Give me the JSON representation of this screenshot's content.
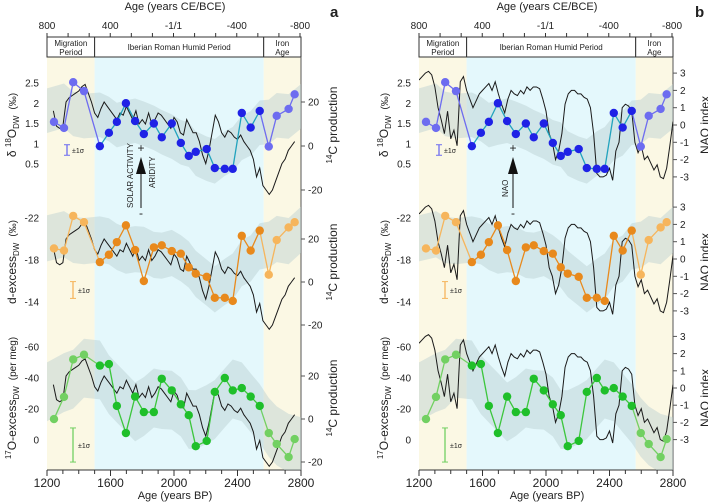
{
  "panels": [
    {
      "letter": "a"
    },
    {
      "letter": "b"
    }
  ],
  "chart_data": {
    "type": "line",
    "top_axis": {
      "label": "Age (years CE/BCE)",
      "ticks": [
        "800",
        "400",
        "-1/1",
        "-400",
        "-800"
      ],
      "values": [
        800,
        400,
        0,
        -400,
        -800
      ]
    },
    "x_axis": {
      "label": "Age (years BP)",
      "ticks": [
        1200,
        1600,
        2000,
        2400,
        2800
      ],
      "xlim": [
        1200,
        2800
      ]
    },
    "periods": [
      {
        "label_lines": [
          "Migration",
          "Period"
        ],
        "from": 1200,
        "to": 1500,
        "color": "#fbf8e4"
      },
      {
        "label_lines": [
          "Iberian Roman Humid Period"
        ],
        "from": 1500,
        "to": 2565,
        "color": "#e4f8fc"
      },
      {
        "label_lines": [
          "Iron",
          "Age"
        ],
        "from": 2565,
        "to": 2800,
        "color": "#fbf8e4"
      }
    ],
    "sample_ages": [
      1244,
      1307,
      1365,
      1433,
      1533,
      1590,
      1640,
      1697,
      1755,
      1810,
      1873,
      1923,
      1986,
      2043,
      2093,
      2137,
      2206,
      2257,
      2320,
      2370,
      2427,
      2483,
      2540,
      2597,
      2647,
      2722,
      2760
    ],
    "series": [
      {
        "name": "d18O_DW",
        "title": {
          "pre": "δ ",
          "sup": "18",
          "main": "O",
          "sub": "DW",
          "unit": "(‰)"
        },
        "ticks": [
          2.5,
          2,
          1.5,
          1,
          0.5
        ],
        "tick_labels": [
          "2.5",
          "2",
          "1.5",
          "1",
          "0.5"
        ],
        "values": [
          1.54,
          1.39,
          2.52,
          2.3,
          0.94,
          1.27,
          1.54,
          2.0,
          1.56,
          1.24,
          1.5,
          1.16,
          1.5,
          1.02,
          0.7,
          0.8,
          0.87,
          0.4,
          0.38,
          0.38,
          1.76,
          1.4,
          1.81,
          0.93,
          1.69,
          1.86,
          2.22
        ],
        "color_dark": "#1f22e6",
        "color_light": "#6d6cf0",
        "line": "#22a3bd",
        "band_halfwidth": 0.55,
        "error_label": "±1σ",
        "error_1sigma": 0.13
      },
      {
        "name": "d-excess_DW",
        "title": {
          "pre": "",
          "sup": "",
          "main": "d-excess",
          "sub": "DW",
          "unit": "(‰)"
        },
        "ticks": [
          -22,
          -18,
          -14
        ],
        "tick_labels": [
          "-22",
          "-18",
          "-14"
        ],
        "values": [
          -19.1,
          -18.9,
          -22.2,
          -21.6,
          -17.8,
          -18.5,
          -19.7,
          -21.3,
          -18.95,
          -16.0,
          -19.2,
          -19.4,
          -18.85,
          -18.6,
          -17.3,
          -16.7,
          -16.4,
          -14.4,
          -14.4,
          -14.1,
          -20.3,
          -18.9,
          -20.8,
          -16.6,
          -19.9,
          -21.1,
          -21.6
        ],
        "color_dark": "#e8891c",
        "color_light": "#f6b55c",
        "line": "#e8891c",
        "band_halfwidth": 2.2,
        "error_label": "±1σ",
        "error_1sigma": 0.8
      },
      {
        "name": "17O-excess_DW",
        "title": {
          "pre": "",
          "sup": "17",
          "main": "O-excess",
          "sub": "DW",
          "unit": "(per meg)"
        },
        "ticks": [
          -60,
          -40,
          -20,
          0
        ],
        "tick_labels": [
          "-60",
          "-40",
          "-20",
          "0"
        ],
        "values": [
          -13.5,
          -27.8,
          -52,
          -55,
          -48,
          -49,
          -22,
          -4.5,
          -28,
          -18,
          -18,
          -39.5,
          -32,
          -23,
          -16,
          4,
          0.6,
          -31,
          -40,
          -32,
          -33.5,
          -28,
          -22,
          -4.5,
          2.6,
          11,
          -0.6
        ],
        "color_dark": "#1fbf2a",
        "color_light": "#72d062",
        "line": "#3cc63c",
        "band_halfwidth": 19,
        "error_label": "±1σ",
        "error_1sigma": 11
      }
    ],
    "c14": {
      "label": "14C production",
      "label_sup": "14",
      "label_main": "C production",
      "ticks": [
        20,
        0,
        -20
      ],
      "tick_labels": [
        "20",
        "0",
        "-20"
      ],
      "ages": [
        1240,
        1260,
        1280,
        1300,
        1320,
        1340,
        1360,
        1380,
        1400,
        1420,
        1440,
        1460,
        1480,
        1500,
        1520,
        1540,
        1560,
        1580,
        1600,
        1620,
        1640,
        1660,
        1680,
        1700,
        1720,
        1740,
        1760,
        1780,
        1800,
        1820,
        1840,
        1860,
        1880,
        1900,
        1920,
        1940,
        1960,
        1980,
        2000,
        2020,
        2040,
        2060,
        2080,
        2100,
        2120,
        2140,
        2160,
        2180,
        2200,
        2220,
        2240,
        2260,
        2280,
        2300,
        2320,
        2340,
        2360,
        2380,
        2400,
        2420,
        2440,
        2460,
        2480,
        2500,
        2520,
        2540,
        2560,
        2580,
        2600,
        2620,
        2640,
        2660,
        2680,
        2700,
        2720,
        2740,
        2760
      ],
      "values": [
        16,
        9,
        8,
        9,
        20,
        22,
        23,
        24,
        25,
        27,
        28,
        24,
        20,
        15,
        13,
        17,
        20,
        18,
        16,
        14,
        12,
        15,
        14,
        18,
        15,
        12,
        16,
        10,
        12,
        10,
        15,
        10,
        12,
        15,
        14,
        12,
        10,
        8,
        13,
        11,
        6,
        5,
        12,
        9,
        6,
        6,
        2,
        -4,
        -8,
        -2,
        6,
        14,
        11,
        6,
        4,
        7,
        6,
        4,
        3,
        5,
        2,
        0,
        -2,
        -6,
        -14,
        -10,
        -18,
        -20,
        -22,
        -20,
        -16,
        -12,
        -8,
        -6,
        -2,
        0,
        2
      ]
    },
    "nao": {
      "label": "NAO index",
      "ticks": [
        3,
        2,
        1,
        0,
        -1,
        -2,
        -3
      ],
      "tick_labels": [
        "3",
        "2",
        "1",
        "0",
        "-1",
        "-2",
        "-3"
      ],
      "ages": [
        1200,
        1220,
        1240,
        1260,
        1280,
        1300,
        1320,
        1340,
        1360,
        1380,
        1400,
        1420,
        1440,
        1460,
        1480,
        1500,
        1520,
        1540,
        1560,
        1580,
        1600,
        1620,
        1640,
        1660,
        1680,
        1700,
        1720,
        1740,
        1760,
        1780,
        1800,
        1820,
        1840,
        1860,
        1880,
        1900,
        1920,
        1940,
        1960,
        1980,
        2000,
        2020,
        2040,
        2060,
        2080,
        2100,
        2120,
        2140,
        2160,
        2180,
        2200,
        2220,
        2240,
        2260,
        2280,
        2300,
        2320,
        2340,
        2360,
        2380,
        2400,
        2420,
        2440,
        2460,
        2480,
        2500,
        2520,
        2540,
        2560,
        2580,
        2600,
        2620,
        2640,
        2660,
        2680,
        2700,
        2720,
        2740,
        2760,
        2780,
        2800
      ],
      "values": [
        2.6,
        2.8,
        3.0,
        3.1,
        2.9,
        2.2,
        1.0,
        0.3,
        -0.5,
        0.8,
        -0.8,
        -0.3,
        -1.2,
        2.5,
        2.8,
        2.0,
        1.5,
        1.0,
        1.4,
        1.8,
        2.0,
        2.2,
        2.4,
        2.0,
        2.5,
        1.8,
        1.2,
        0.7,
        1.5,
        2.0,
        1.8,
        1.7,
        2.0,
        1.8,
        2.2,
        2.0,
        2.2,
        2.2,
        2.1,
        1.5,
        0.8,
        -0.5,
        -1.0,
        -2.0,
        -1.5,
        -0.5,
        1.2,
        1.8,
        2.0,
        2.0,
        1.8,
        1.8,
        1.6,
        1.5,
        1.0,
        -0.5,
        -2.8,
        -3.0,
        -3.0,
        -2.9,
        -2.5,
        -3.2,
        -1.5,
        -1.0,
        1.0,
        1.2,
        1.1,
        0.8,
        -1.0,
        -1.6,
        -1.2,
        -2.0,
        -1.8,
        -2.2,
        -2.6,
        -2.3,
        -3.0,
        -3.1,
        -2.5,
        -1.2,
        0.2
      ]
    },
    "annotations": {
      "plus": "+",
      "minus": "-",
      "panel_a": [
        "SOLAR ACTIVITY",
        "ARIDITY"
      ],
      "panel_b": [
        "NAO"
      ]
    }
  }
}
